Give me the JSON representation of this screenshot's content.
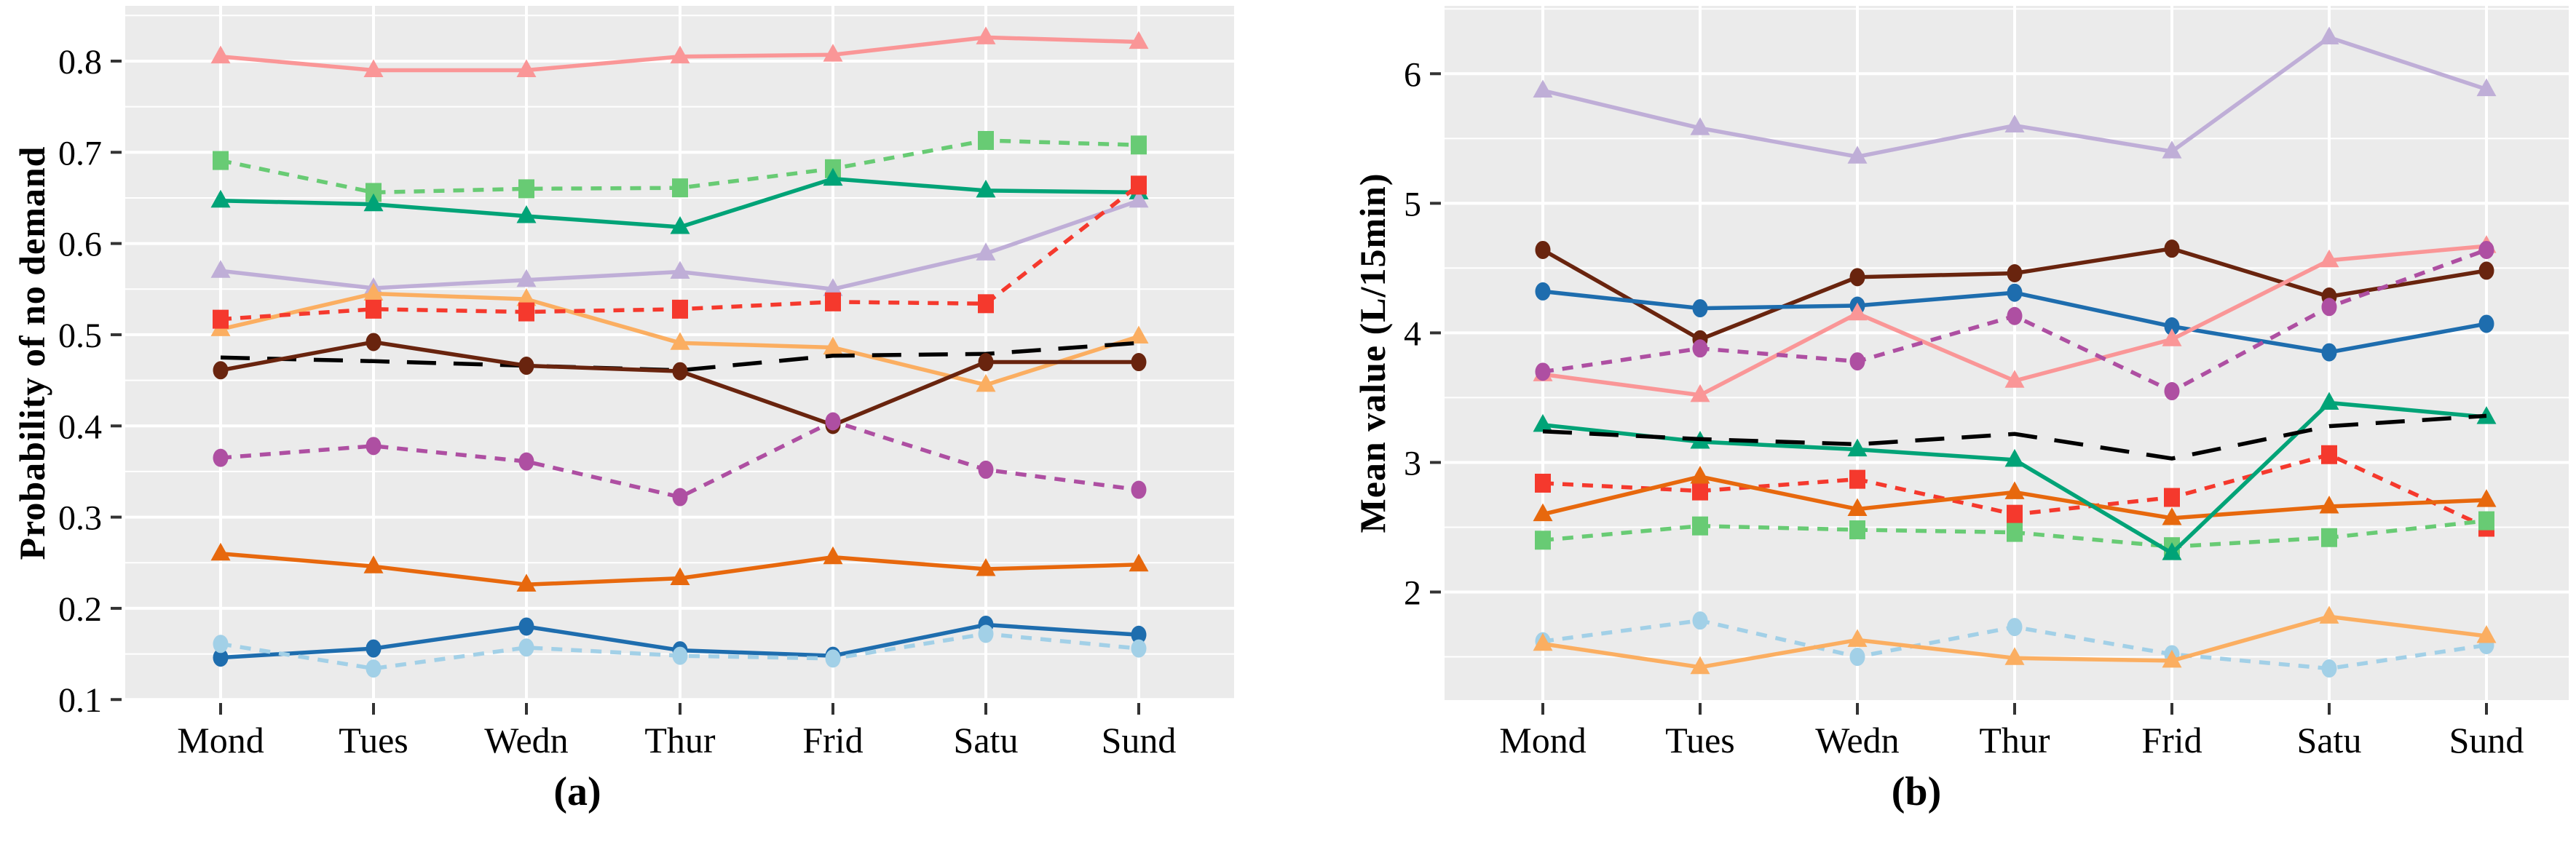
{
  "page": {
    "background_color": "#ffffff",
    "panel_background_color": "#ebebeb",
    "gridline_color": "#ffffff",
    "tick_color": "#333333"
  },
  "chart_data": [
    {
      "type": "line",
      "panel_label": "(a)",
      "ylabel": "Probability of no demand",
      "xlabel": "",
      "legend": "none",
      "grid": "major+minor",
      "categories": [
        "Mond",
        "Tues",
        "Wedn",
        "Thur",
        "Frid",
        "Satu",
        "Sund"
      ],
      "yticks": [
        0.1,
        0.2,
        0.3,
        0.4,
        0.5,
        0.6,
        0.7,
        0.8
      ],
      "ytick_labels": [
        "0.1",
        "0.2",
        "0.3",
        "0.4",
        "0.5",
        "0.6",
        "0.7",
        "0.8"
      ],
      "ylim": [
        0.0994,
        0.8606
      ],
      "series": [
        {
          "name": "salmon-solid-triangle",
          "color": "#FA9697",
          "linestyle": "solid",
          "marker": "triangle",
          "values": [
            0.805,
            0.79,
            0.79,
            0.805,
            0.807,
            0.826,
            0.821
          ]
        },
        {
          "name": "lightgreen-dashed-square",
          "color": "#68CB74",
          "linestyle": "dashed",
          "marker": "square",
          "values": [
            0.691,
            0.656,
            0.66,
            0.661,
            0.682,
            0.713,
            0.708
          ]
        },
        {
          "name": "teal-solid-triangle",
          "color": "#00A377",
          "linestyle": "solid",
          "marker": "triangle",
          "values": [
            0.647,
            0.643,
            0.63,
            0.618,
            0.671,
            0.658,
            0.656
          ]
        },
        {
          "name": "lavender-solid-triangle",
          "color": "#BFAED7",
          "linestyle": "solid",
          "marker": "triangle",
          "values": [
            0.57,
            0.551,
            0.56,
            0.569,
            0.55,
            0.589,
            0.647
          ]
        },
        {
          "name": "lightorange-solid-triangle",
          "color": "#FBAE61",
          "linestyle": "solid",
          "marker": "triangle",
          "values": [
            0.506,
            0.545,
            0.539,
            0.491,
            0.486,
            0.445,
            0.498
          ]
        },
        {
          "name": "red-dashed-square",
          "color": "#F5392D",
          "linestyle": "dashed",
          "marker": "square",
          "values": [
            0.517,
            0.528,
            0.525,
            0.528,
            0.536,
            0.534,
            0.664
          ]
        },
        {
          "name": "black-longdash",
          "color": "#000000",
          "linestyle": "longdash",
          "marker": "none",
          "values": [
            0.475,
            0.471,
            0.466,
            0.461,
            0.477,
            0.479,
            0.491
          ]
        },
        {
          "name": "brown-solid-circle",
          "color": "#69240E",
          "linestyle": "solid",
          "marker": "circle",
          "values": [
            0.461,
            0.492,
            0.466,
            0.46,
            0.401,
            0.47,
            0.47
          ]
        },
        {
          "name": "orchid-dashed-circle",
          "color": "#AE4FA2",
          "linestyle": "dashed",
          "marker": "circle",
          "values": [
            0.365,
            0.378,
            0.361,
            0.322,
            0.405,
            0.352,
            0.33
          ]
        },
        {
          "name": "darkorange-solid-triangle",
          "color": "#E7680D",
          "linestyle": "solid",
          "marker": "triangle",
          "values": [
            0.26,
            0.246,
            0.226,
            0.233,
            0.256,
            0.243,
            0.248
          ]
        },
        {
          "name": "blue-solid-circle",
          "color": "#1E6DAE",
          "linestyle": "solid",
          "marker": "circle",
          "values": [
            0.146,
            0.156,
            0.18,
            0.154,
            0.148,
            0.182,
            0.171
          ]
        },
        {
          "name": "lightblue-dashed-circle",
          "color": "#A2D0E7",
          "linestyle": "dashed",
          "marker": "circle",
          "values": [
            0.161,
            0.134,
            0.157,
            0.148,
            0.145,
            0.172,
            0.156
          ]
        }
      ]
    },
    {
      "type": "line",
      "panel_label": "(b)",
      "ylabel": "Mean value (L/15min)",
      "xlabel": "",
      "legend": "none",
      "grid": "major+minor",
      "categories": [
        "Mond",
        "Tues",
        "Wedn",
        "Thur",
        "Frid",
        "Satu",
        "Sund"
      ],
      "yticks": [
        2,
        3,
        4,
        5,
        6
      ],
      "ytick_labels": [
        "2",
        "3",
        "4",
        "5",
        "6"
      ],
      "ylim": [
        1.166,
        6.524
      ],
      "series": [
        {
          "name": "lavender-solid-triangle",
          "color": "#BFAED7",
          "linestyle": "solid",
          "marker": "triangle",
          "values": [
            5.87,
            5.58,
            5.36,
            5.6,
            5.4,
            6.28,
            5.88
          ]
        },
        {
          "name": "brown-solid-circle",
          "color": "#69240E",
          "linestyle": "solid",
          "marker": "circle",
          "values": [
            4.64,
            3.95,
            4.43,
            4.46,
            4.65,
            4.28,
            4.48
          ]
        },
        {
          "name": "blue-solid-circle",
          "color": "#1E6DAE",
          "linestyle": "solid",
          "marker": "circle",
          "values": [
            4.32,
            4.19,
            4.21,
            4.31,
            4.05,
            3.85,
            4.07
          ]
        },
        {
          "name": "salmon-solid-triangle",
          "color": "#FA9697",
          "linestyle": "solid",
          "marker": "triangle",
          "values": [
            3.68,
            3.52,
            4.15,
            3.63,
            3.95,
            4.56,
            4.67
          ]
        },
        {
          "name": "orchid-dashed-circle",
          "color": "#AE4FA2",
          "linestyle": "dashed",
          "marker": "circle",
          "values": [
            3.7,
            3.88,
            3.78,
            4.13,
            3.55,
            4.2,
            4.64
          ]
        },
        {
          "name": "red-dashed-square",
          "color": "#F5392D",
          "linestyle": "dashed",
          "marker": "square",
          "values": [
            2.84,
            2.78,
            2.87,
            2.6,
            2.73,
            3.06,
            2.5
          ]
        },
        {
          "name": "darkorange-solid-triangle",
          "color": "#E7680D",
          "linestyle": "solid",
          "marker": "triangle",
          "values": [
            2.6,
            2.89,
            2.64,
            2.77,
            2.57,
            2.66,
            2.71
          ]
        },
        {
          "name": "lightgreen-dashed-square",
          "color": "#68CB74",
          "linestyle": "dashed",
          "marker": "square",
          "values": [
            2.4,
            2.51,
            2.48,
            2.46,
            2.35,
            2.42,
            2.55
          ]
        },
        {
          "name": "teal-solid-triangle",
          "color": "#00A377",
          "linestyle": "solid",
          "marker": "triangle",
          "values": [
            3.29,
            3.16,
            3.1,
            3.02,
            2.3,
            3.46,
            3.35
          ]
        },
        {
          "name": "black-longdash",
          "color": "#000000",
          "linestyle": "longdash",
          "marker": "none",
          "values": [
            3.24,
            3.18,
            3.14,
            3.22,
            3.03,
            3.28,
            3.36
          ]
        },
        {
          "name": "lightblue-dashed-circle",
          "color": "#A2D0E7",
          "linestyle": "dashed",
          "marker": "circle",
          "values": [
            1.62,
            1.78,
            1.5,
            1.73,
            1.52,
            1.41,
            1.59
          ]
        },
        {
          "name": "lightorange-solid-triangle",
          "color": "#FBAE61",
          "linestyle": "solid",
          "marker": "triangle",
          "values": [
            1.6,
            1.42,
            1.63,
            1.49,
            1.47,
            1.81,
            1.66
          ]
        }
      ]
    }
  ]
}
